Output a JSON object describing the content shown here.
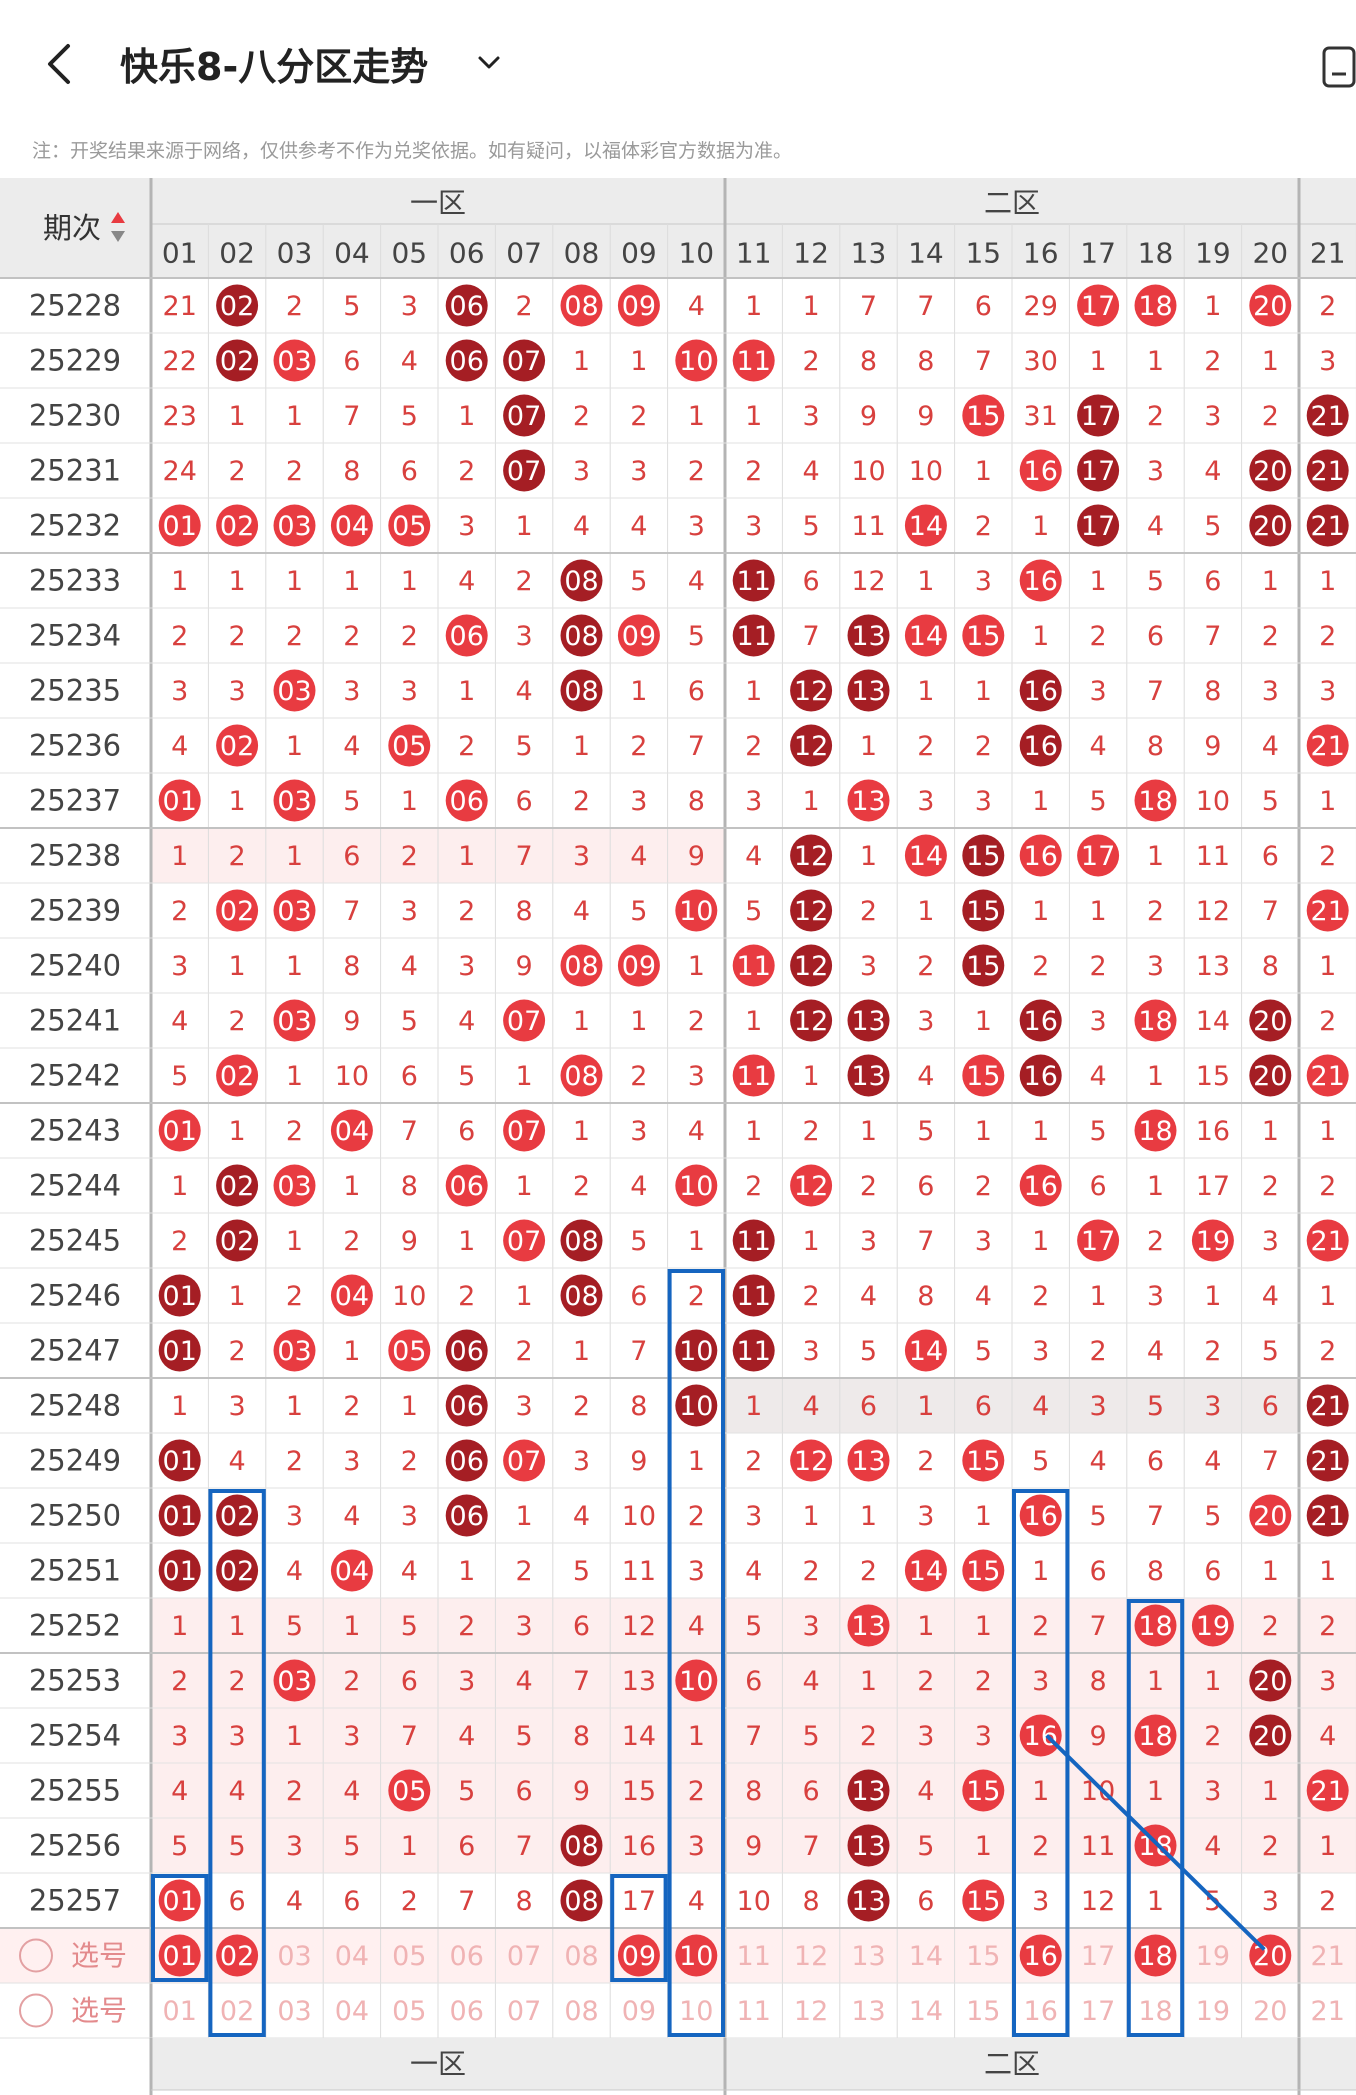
{
  "header": {
    "back_icon": "chevron-left-icon",
    "title": "快乐8-八分区走势",
    "dropdown_icon": "chevron-down-icon",
    "device_icon": "phone-outline-icon"
  },
  "note": "注：开奖结果来源于网络，仅供参考不作为兑奖依据。如有疑问，以福体彩官方数据为准。",
  "table": {
    "issue_header": "期次",
    "sort_icon": "sort-up-down-icon",
    "zones": [
      "一区",
      "二区"
    ],
    "columns": [
      "01",
      "02",
      "03",
      "04",
      "05",
      "06",
      "07",
      "08",
      "09",
      "10",
      "11",
      "12",
      "13",
      "14",
      "15",
      "16",
      "17",
      "18",
      "19",
      "20",
      "21"
    ],
    "rows": [
      {
        "issue": "25228",
        "cells": [
          "21",
          "02",
          "2",
          "5",
          "3",
          "06",
          "2",
          "08",
          "09",
          "4",
          "1",
          "1",
          "7",
          "7",
          "6",
          "29",
          "17",
          "18",
          "1",
          "20",
          "2"
        ]
      },
      {
        "issue": "25229",
        "cells": [
          "22",
          "02",
          "03",
          "6",
          "4",
          "06",
          "07",
          "1",
          "1",
          "10",
          "11",
          "2",
          "8",
          "8",
          "7",
          "30",
          "1",
          "1",
          "2",
          "1",
          "3"
        ]
      },
      {
        "issue": "25230",
        "cells": [
          "23",
          "1",
          "1",
          "7",
          "5",
          "1",
          "07",
          "2",
          "2",
          "1",
          "1",
          "3",
          "9",
          "9",
          "15",
          "31",
          "17",
          "2",
          "3",
          "2",
          "21"
        ]
      },
      {
        "issue": "25231",
        "cells": [
          "24",
          "2",
          "2",
          "8",
          "6",
          "2",
          "07",
          "3",
          "3",
          "2",
          "2",
          "4",
          "10",
          "10",
          "1",
          "16",
          "17",
          "3",
          "4",
          "20",
          "21"
        ]
      },
      {
        "issue": "25232",
        "cells": [
          "01",
          "02",
          "03",
          "04",
          "05",
          "3",
          "1",
          "4",
          "4",
          "3",
          "3",
          "5",
          "11",
          "14",
          "2",
          "1",
          "17",
          "4",
          "5",
          "20",
          "21"
        ]
      },
      {
        "issue": "25233",
        "cells": [
          "1",
          "1",
          "1",
          "1",
          "1",
          "4",
          "2",
          "08",
          "5",
          "4",
          "11",
          "6",
          "12",
          "1",
          "3",
          "16",
          "1",
          "5",
          "6",
          "1",
          "1"
        ]
      },
      {
        "issue": "25234",
        "cells": [
          "2",
          "2",
          "2",
          "2",
          "2",
          "06",
          "3",
          "08",
          "09",
          "5",
          "11",
          "7",
          "13",
          "14",
          "15",
          "1",
          "2",
          "6",
          "7",
          "2",
          "2"
        ]
      },
      {
        "issue": "25235",
        "cells": [
          "3",
          "3",
          "03",
          "3",
          "3",
          "1",
          "4",
          "08",
          "1",
          "6",
          "1",
          "12",
          "13",
          "1",
          "1",
          "16",
          "3",
          "7",
          "8",
          "3",
          "3"
        ]
      },
      {
        "issue": "25236",
        "cells": [
          "4",
          "02",
          "1",
          "4",
          "05",
          "2",
          "5",
          "1",
          "2",
          "7",
          "2",
          "12",
          "1",
          "2",
          "2",
          "16",
          "4",
          "8",
          "9",
          "4",
          "21"
        ]
      },
      {
        "issue": "25237",
        "cells": [
          "01",
          "1",
          "03",
          "5",
          "1",
          "06",
          "6",
          "2",
          "3",
          "8",
          "3",
          "1",
          "13",
          "3",
          "3",
          "1",
          "5",
          "18",
          "10",
          "5",
          "1"
        ]
      },
      {
        "issue": "25238",
        "cells": [
          "1",
          "2",
          "1",
          "6",
          "2",
          "1",
          "7",
          "3",
          "4",
          "9",
          "4",
          "12",
          "1",
          "14",
          "15",
          "16",
          "17",
          "1",
          "11",
          "6",
          "2"
        ]
      },
      {
        "issue": "25239",
        "cells": [
          "2",
          "02",
          "03",
          "7",
          "3",
          "2",
          "8",
          "4",
          "5",
          "10",
          "5",
          "12",
          "2",
          "1",
          "15",
          "1",
          "1",
          "2",
          "12",
          "7",
          "21"
        ]
      },
      {
        "issue": "25240",
        "cells": [
          "3",
          "1",
          "1",
          "8",
          "4",
          "3",
          "9",
          "08",
          "09",
          "1",
          "11",
          "12",
          "3",
          "2",
          "15",
          "2",
          "2",
          "3",
          "13",
          "8",
          "1"
        ]
      },
      {
        "issue": "25241",
        "cells": [
          "4",
          "2",
          "03",
          "9",
          "5",
          "4",
          "07",
          "1",
          "1",
          "2",
          "1",
          "12",
          "13",
          "3",
          "1",
          "16",
          "3",
          "18",
          "14",
          "20",
          "2"
        ]
      },
      {
        "issue": "25242",
        "cells": [
          "5",
          "02",
          "1",
          "10",
          "6",
          "5",
          "1",
          "08",
          "2",
          "3",
          "11",
          "1",
          "13",
          "4",
          "15",
          "16",
          "4",
          "1",
          "15",
          "20",
          "21"
        ]
      },
      {
        "issue": "25243",
        "cells": [
          "01",
          "1",
          "2",
          "04",
          "7",
          "6",
          "07",
          "1",
          "3",
          "4",
          "1",
          "2",
          "1",
          "5",
          "1",
          "1",
          "5",
          "18",
          "16",
          "1",
          "1"
        ]
      },
      {
        "issue": "25244",
        "cells": [
          "1",
          "02",
          "03",
          "1",
          "8",
          "06",
          "1",
          "2",
          "4",
          "10",
          "2",
          "12",
          "2",
          "6",
          "2",
          "16",
          "6",
          "1",
          "17",
          "2",
          "2"
        ]
      },
      {
        "issue": "25245",
        "cells": [
          "2",
          "02",
          "1",
          "2",
          "9",
          "1",
          "07",
          "08",
          "5",
          "1",
          "11",
          "1",
          "3",
          "7",
          "3",
          "1",
          "17",
          "2",
          "19",
          "3",
          "21"
        ]
      },
      {
        "issue": "25246",
        "cells": [
          "01",
          "1",
          "2",
          "04",
          "10",
          "2",
          "1",
          "08",
          "6",
          "2",
          "11",
          "2",
          "4",
          "8",
          "4",
          "2",
          "1",
          "3",
          "1",
          "4",
          "1"
        ]
      },
      {
        "issue": "25247",
        "cells": [
          "01",
          "2",
          "03",
          "1",
          "05",
          "06",
          "2",
          "1",
          "7",
          "10",
          "11",
          "3",
          "5",
          "14",
          "5",
          "3",
          "2",
          "4",
          "2",
          "5",
          "2"
        ]
      },
      {
        "issue": "25248",
        "cells": [
          "1",
          "3",
          "1",
          "2",
          "1",
          "06",
          "3",
          "2",
          "8",
          "10",
          "1",
          "4",
          "6",
          "1",
          "6",
          "4",
          "3",
          "5",
          "3",
          "6",
          "21"
        ]
      },
      {
        "issue": "25249",
        "cells": [
          "01",
          "4",
          "2",
          "3",
          "2",
          "06",
          "07",
          "3",
          "9",
          "1",
          "2",
          "12",
          "13",
          "2",
          "15",
          "5",
          "4",
          "6",
          "4",
          "7",
          "21"
        ]
      },
      {
        "issue": "25250",
        "cells": [
          "01",
          "02",
          "3",
          "4",
          "3",
          "06",
          "1",
          "4",
          "10",
          "2",
          "3",
          "1",
          "1",
          "3",
          "1",
          "16",
          "5",
          "7",
          "5",
          "20",
          "21"
        ]
      },
      {
        "issue": "25251",
        "cells": [
          "01",
          "02",
          "4",
          "04",
          "4",
          "1",
          "2",
          "5",
          "11",
          "3",
          "4",
          "2",
          "2",
          "14",
          "15",
          "1",
          "6",
          "8",
          "6",
          "1",
          "1"
        ]
      },
      {
        "issue": "25252",
        "cells": [
          "1",
          "1",
          "5",
          "1",
          "5",
          "2",
          "3",
          "6",
          "12",
          "4",
          "5",
          "3",
          "13",
          "1",
          "1",
          "2",
          "7",
          "18",
          "19",
          "2",
          "2"
        ]
      },
      {
        "issue": "25253",
        "cells": [
          "2",
          "2",
          "03",
          "2",
          "6",
          "3",
          "4",
          "7",
          "13",
          "10",
          "6",
          "4",
          "1",
          "2",
          "2",
          "3",
          "8",
          "1",
          "1",
          "20",
          "3"
        ]
      },
      {
        "issue": "25254",
        "cells": [
          "3",
          "3",
          "1",
          "3",
          "7",
          "4",
          "5",
          "8",
          "14",
          "1",
          "7",
          "5",
          "2",
          "3",
          "3",
          "16",
          "9",
          "18",
          "2",
          "20",
          "4"
        ]
      },
      {
        "issue": "25255",
        "cells": [
          "4",
          "4",
          "2",
          "4",
          "05",
          "5",
          "6",
          "9",
          "15",
          "2",
          "8",
          "6",
          "13",
          "4",
          "15",
          "1",
          "10",
          "1",
          "3",
          "1",
          "21"
        ]
      },
      {
        "issue": "25256",
        "cells": [
          "5",
          "5",
          "3",
          "5",
          "1",
          "6",
          "7",
          "08",
          "16",
          "3",
          "9",
          "7",
          "13",
          "5",
          "1",
          "2",
          "11",
          "18",
          "4",
          "2",
          "1"
        ]
      },
      {
        "issue": "25257",
        "cells": [
          "01",
          "6",
          "4",
          "6",
          "2",
          "7",
          "8",
          "08",
          "17",
          "4",
          "10",
          "8",
          "13",
          "6",
          "15",
          "3",
          "12",
          "1",
          "5",
          "3",
          "2"
        ]
      }
    ],
    "picker_label": "选号",
    "picker_rows": [
      {
        "cells": [
          "01",
          "02",
          "03",
          "04",
          "05",
          "06",
          "07",
          "08",
          "09",
          "10",
          "11",
          "12",
          "13",
          "14",
          "15",
          "16",
          "17",
          "18",
          "19",
          "20",
          "21"
        ],
        "selected": [
          "01",
          "02",
          "09",
          "10",
          "16",
          "18",
          "20"
        ]
      },
      {
        "cells": [
          "01",
          "02",
          "03",
          "04",
          "05",
          "06",
          "07",
          "08",
          "09",
          "10",
          "11",
          "12",
          "13",
          "14",
          "15",
          "16",
          "17",
          "18",
          "19",
          "20",
          "21"
        ],
        "selected": []
      }
    ],
    "footer_zones": [
      "一区",
      "二区"
    ]
  },
  "colors": {
    "hit_red": "#e83b41",
    "hit_dark": "#a51e24",
    "miss_text": "#d8403e",
    "header_bg": "#ececec",
    "highlight_row_bg": "#fdeeee",
    "annotation_blue": "#1565c0"
  }
}
